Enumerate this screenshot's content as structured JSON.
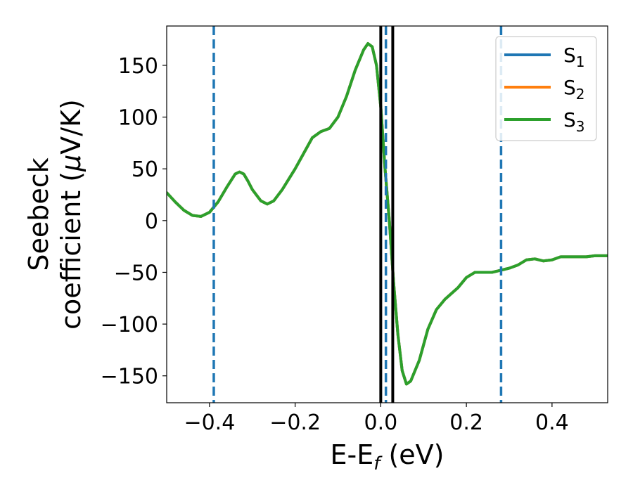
{
  "chart_data": {
    "type": "line",
    "xlabel": {
      "main": "E-E",
      "sub": "f",
      "unit": " (eV)"
    },
    "ylabel": {
      "line1": "Seebeck",
      "line2a": "coefficient  (",
      "mu": "μ",
      "line2b": "V/K)"
    },
    "xlim": [
      -0.5,
      0.53
    ],
    "ylim": [
      -176,
      188
    ],
    "xticks": [
      -0.4,
      -0.2,
      0.0,
      0.2,
      0.4
    ],
    "xtick_labels": [
      "−0.4",
      "−0.2",
      "0.0",
      "0.2",
      "0.4"
    ],
    "yticks": [
      150,
      100,
      50,
      0,
      -50,
      -100,
      -150
    ],
    "ytick_labels": [
      "150",
      "100",
      "50",
      "0",
      "−50",
      "−100",
      "−150"
    ],
    "grid": false,
    "legend_position": "top-right",
    "series": [
      {
        "name": {
          "base": "S",
          "sub": "1"
        },
        "color": "#1f77b4",
        "values": "identical to S3"
      },
      {
        "name": {
          "base": "S",
          "sub": "2"
        },
        "color": "#ff7f0e",
        "values": "identical to S3"
      },
      {
        "name": {
          "base": "S",
          "sub": "3"
        },
        "color": "#2ca02c",
        "x": [
          -0.5,
          -0.48,
          -0.46,
          -0.44,
          -0.42,
          -0.4,
          -0.38,
          -0.36,
          -0.34,
          -0.33,
          -0.32,
          -0.31,
          -0.3,
          -0.28,
          -0.265,
          -0.25,
          -0.23,
          -0.2,
          -0.18,
          -0.16,
          -0.14,
          -0.12,
          -0.1,
          -0.08,
          -0.06,
          -0.04,
          -0.03,
          -0.02,
          -0.01,
          0.0,
          0.005,
          0.01,
          0.02,
          0.03,
          0.04,
          0.05,
          0.06,
          0.07,
          0.09,
          0.11,
          0.13,
          0.15,
          0.18,
          0.2,
          0.22,
          0.24,
          0.26,
          0.28,
          0.3,
          0.32,
          0.34,
          0.36,
          0.38,
          0.4,
          0.42,
          0.44,
          0.46,
          0.48,
          0.5,
          0.53
        ],
        "y": [
          27,
          18,
          10,
          5,
          4,
          8,
          18,
          32,
          45,
          47,
          45,
          38,
          30,
          19,
          16,
          19,
          30,
          50,
          65,
          80,
          86,
          89,
          100,
          120,
          145,
          165,
          171,
          168,
          150,
          110,
          80,
          50,
          0,
          -60,
          -110,
          -145,
          -158,
          -155,
          -135,
          -105,
          -86,
          -76,
          -65,
          -55,
          -50,
          -50,
          -50,
          -48,
          -46,
          -43,
          -38,
          -37,
          -39,
          -38,
          -35,
          -35,
          -35,
          -35,
          -34,
          -34
        ]
      }
    ],
    "vlines": [
      {
        "x": -0.39,
        "style": "dashed",
        "color": "#1f77b4"
      },
      {
        "x": 0.0,
        "style": "solid",
        "color": "#000000"
      },
      {
        "x": 0.012,
        "style": "dashed",
        "color": "#1f77b4"
      },
      {
        "x": 0.028,
        "style": "solid",
        "color": "#000000"
      },
      {
        "x": 0.281,
        "style": "dashed",
        "color": "#1f77b4"
      }
    ]
  }
}
